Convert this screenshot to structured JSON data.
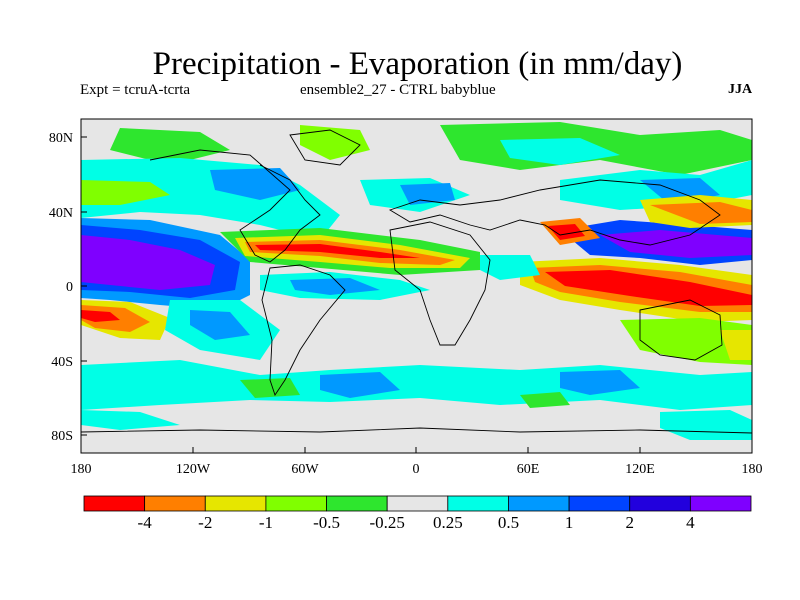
{
  "title": "Precipitation - Evaporation (in mm/day)",
  "subtitle_left": "Expt = tcruA-tcrta",
  "subtitle_center": "ensemble2_27 - CTRL babyblue",
  "season": "JJA",
  "y_ticks": [
    "80N",
    "40N",
    "0",
    "40S",
    "80S"
  ],
  "x_ticks": [
    "180",
    "120W",
    "60W",
    "0",
    "60E",
    "120E",
    "180"
  ],
  "colorbar": {
    "colors": [
      "#ff0000",
      "#ff7f00",
      "#e6e600",
      "#80ff00",
      "#2ee62e",
      "#e6e6e6",
      "#00ffe6",
      "#0099ff",
      "#0044ff",
      "#2200dd",
      "#7f00ff"
    ],
    "labels": [
      "-4",
      "-2",
      "-1",
      "-0.5",
      "-0.25",
      "0.25",
      "0.5",
      "1",
      "2",
      "4"
    ]
  },
  "colors": {
    "background": "#e6e6e6",
    "coast": "#000000"
  }
}
